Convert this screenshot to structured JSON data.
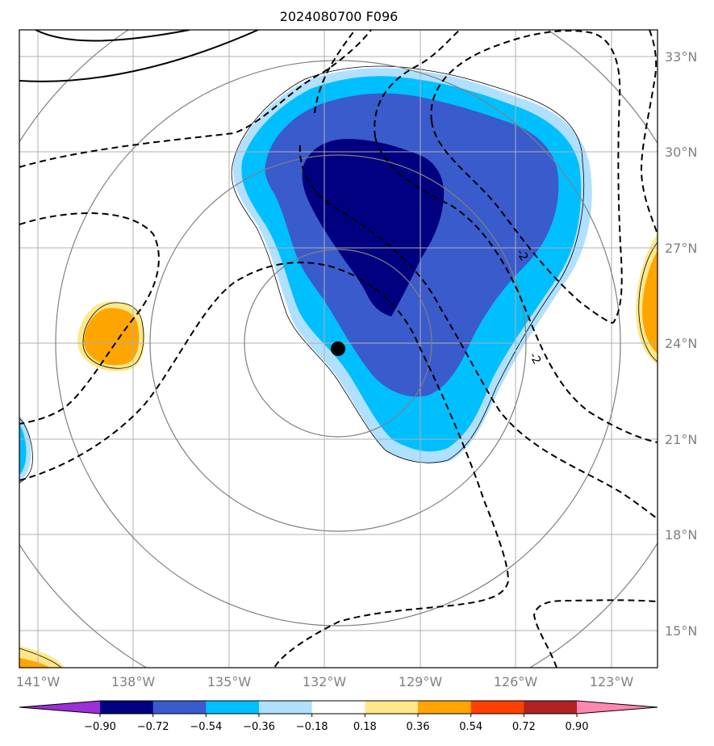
{
  "title": "2024080700 F096",
  "lat_labels": [
    "33°N",
    "30°N",
    "27°N",
    "24°N",
    "21°N",
    "18°N",
    "15°N"
  ],
  "lon_labels": [
    "141°W",
    "138°W",
    "135°W",
    "132°W",
    "129°W",
    "126°W",
    "123°W"
  ],
  "contour_labels": [
    "-2",
    "-2"
  ],
  "colorbar": {
    "ticks": [
      "−0.90",
      "−0.72",
      "−0.54",
      "−0.36",
      "−0.18",
      "0.18",
      "0.36",
      "0.54",
      "0.72",
      "0.90"
    ],
    "colors": [
      "#9b30d6",
      "#000080",
      "#3a5bcc",
      "#00bfff",
      "#b0e0ff",
      "#ffffff",
      "#ffe88a",
      "#ffa500",
      "#ff4000",
      "#b22222",
      "#ff88b0"
    ]
  },
  "storm_center": {
    "lon": -131.6,
    "lat": 23.8
  },
  "colors": {
    "grid": "#b0b0b0",
    "range_rings": "#808080",
    "dark_navy": "#000080",
    "royal_blue": "#3a5bcc",
    "deep_sky": "#00bfff",
    "light_blue": "#b0e0ff",
    "orange": "#ffa500",
    "light_yellow": "#ffe88a"
  }
}
